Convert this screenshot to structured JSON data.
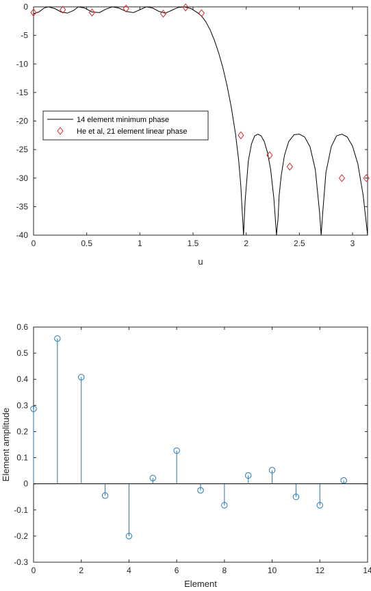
{
  "chart_data": [
    {
      "type": "line",
      "title": "",
      "xlabel": "u",
      "ylabel": "",
      "xlim": [
        0,
        3.1416
      ],
      "ylim": [
        -40,
        0
      ],
      "xticks": [
        0,
        0.5,
        1,
        1.5,
        2,
        2.5,
        3
      ],
      "yticks": [
        0,
        -5,
        -10,
        -15,
        -20,
        -25,
        -30,
        -35,
        -40
      ],
      "grid": false,
      "legend_position": "middle-left",
      "series": [
        {
          "name": "14 element minimum phase",
          "color": "#000000",
          "style": "line",
          "x": [
            0,
            0.05,
            0.1,
            0.14,
            0.2,
            0.26,
            0.32,
            0.38,
            0.42,
            0.48,
            0.55,
            0.62,
            0.68,
            0.74,
            0.8,
            0.87,
            0.94,
            1.0,
            1.06,
            1.12,
            1.18,
            1.24,
            1.3,
            1.36,
            1.42,
            1.48,
            1.54,
            1.58,
            1.62,
            1.66,
            1.7,
            1.74,
            1.78,
            1.82,
            1.86,
            1.9,
            1.93,
            1.95,
            1.96,
            1.975,
            1.99,
            2.02,
            2.05,
            2.08,
            2.11,
            2.14,
            2.17,
            2.2,
            2.23,
            2.26,
            2.285,
            2.3,
            2.31,
            2.33,
            2.36,
            2.4,
            2.45,
            2.5,
            2.55,
            2.6,
            2.65,
            2.69,
            2.705,
            2.72,
            2.75,
            2.8,
            2.85,
            2.9,
            2.95,
            3.0,
            3.05,
            3.1,
            3.13,
            3.1416
          ],
          "y": [
            -1.2,
            -0.9,
            -0.2,
            0,
            -0.3,
            -0.9,
            -1.1,
            -0.6,
            0,
            -0.2,
            -0.9,
            -1.0,
            -0.4,
            0,
            -0.2,
            -0.8,
            -1.0,
            -0.5,
            0,
            -0.2,
            -0.8,
            -1.1,
            -0.6,
            -0.1,
            0,
            -0.3,
            -1.0,
            -1.6,
            -2.6,
            -4.0,
            -5.8,
            -8.0,
            -10.6,
            -13.8,
            -17.6,
            -22.3,
            -27.0,
            -31.5,
            -35.0,
            -40,
            -34.0,
            -27.0,
            -24.0,
            -22.6,
            -22.3,
            -22.6,
            -23.6,
            -25.5,
            -28.5,
            -33.5,
            -40,
            -37.0,
            -33.0,
            -29.5,
            -26.0,
            -23.6,
            -22.4,
            -22.3,
            -22.8,
            -24.5,
            -28.5,
            -36.0,
            -40,
            -36.0,
            -29.0,
            -24.5,
            -22.6,
            -22.3,
            -22.8,
            -24.4,
            -27.5,
            -33.0,
            -38.0,
            -40
          ]
        },
        {
          "name": "He et al, 21 element linear phase",
          "color": "#d62728",
          "style": "diamond-markers",
          "x": [
            0,
            0.275,
            0.55,
            0.87,
            1.22,
            1.43,
            1.58,
            1.95,
            2.22,
            2.41,
            2.9,
            3.13
          ],
          "y": [
            -1,
            -0.5,
            -1,
            -0.3,
            -1.2,
            -0.1,
            -1.1,
            -22.5,
            -26,
            -28,
            -30,
            -30
          ]
        }
      ]
    },
    {
      "type": "stem",
      "title": "",
      "xlabel": "Element",
      "ylabel": "Element amplitude",
      "xlim": [
        0,
        14
      ],
      "ylim": [
        -0.3,
        0.6
      ],
      "xticks": [
        0,
        2,
        4,
        6,
        8,
        10,
        12,
        14
      ],
      "yticks": [
        0.6,
        0.5,
        0.4,
        0.3,
        0.2,
        0.1,
        0,
        -0.1,
        -0.2,
        -0.3
      ],
      "grid": false,
      "color": "#1f77b4",
      "x": [
        0,
        1,
        2,
        3,
        4,
        5,
        6,
        7,
        8,
        9,
        10,
        11,
        12,
        13
      ],
      "values": [
        0.287,
        0.556,
        0.408,
        -0.045,
        -0.2,
        0.022,
        0.127,
        -0.025,
        -0.082,
        0.032,
        0.052,
        -0.05,
        -0.082,
        0.013
      ]
    }
  ]
}
